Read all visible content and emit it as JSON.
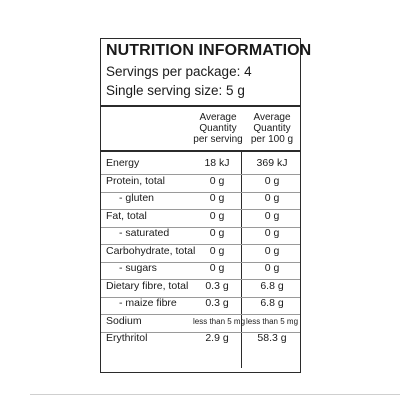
{
  "panel": {
    "title": "NUTRITION INFORMATION",
    "servings_per_package": "Servings per package: 4",
    "serving_size": "Single serving size: 5 g"
  },
  "columns": {
    "per_serving": [
      "Average",
      "Quantity",
      "per serving"
    ],
    "per_100g": [
      "Average",
      "Quantity",
      "per 100 g"
    ]
  },
  "rows": [
    {
      "name": "Energy",
      "per_serving": "18 kJ",
      "per_100g": "369 kJ",
      "indent": false
    },
    {
      "name": "Protein, total",
      "per_serving": "0 g",
      "per_100g": "0 g",
      "indent": false
    },
    {
      "name": "- gluten",
      "per_serving": "0 g",
      "per_100g": "0 g",
      "indent": true
    },
    {
      "name": "Fat, total",
      "per_serving": "0 g",
      "per_100g": "0 g",
      "indent": false
    },
    {
      "name": "- saturated",
      "per_serving": "0 g",
      "per_100g": "0 g",
      "indent": true
    },
    {
      "name": "Carbohydrate, total",
      "per_serving": "0 g",
      "per_100g": "0 g",
      "indent": false
    },
    {
      "name": "- sugars",
      "per_serving": "0 g",
      "per_100g": "0 g",
      "indent": true
    },
    {
      "name": "Dietary fibre, total",
      "per_serving": "0.3 g",
      "per_100g": "6.8 g",
      "indent": false
    },
    {
      "name": "- maize fibre",
      "per_serving": "0.3 g",
      "per_100g": "6.8 g",
      "indent": true
    },
    {
      "name": "Sodium",
      "per_serving": "less than 5 mg",
      "per_100g": "less than 5 mg",
      "indent": false
    },
    {
      "name": "Erythritol",
      "per_serving": "2.9 g",
      "per_100g": "58.3 g",
      "indent": false
    }
  ]
}
